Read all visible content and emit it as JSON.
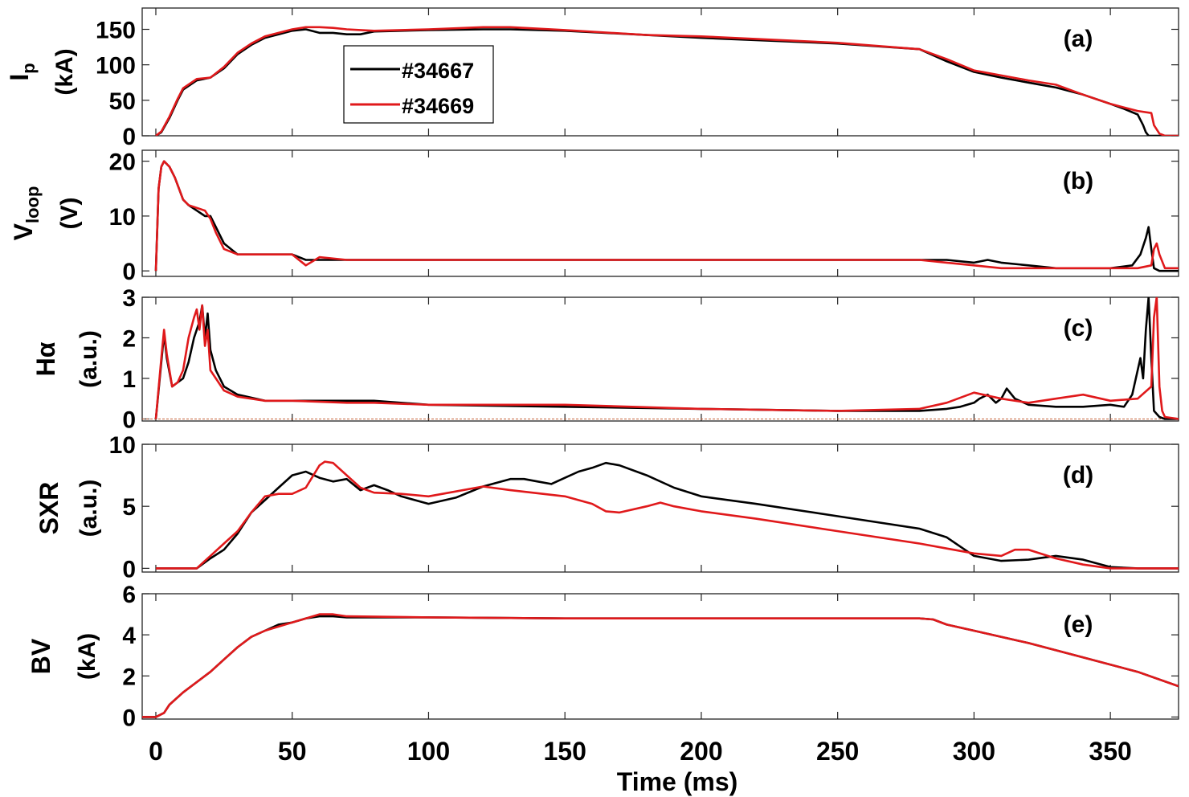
{
  "chart_data": {
    "type": "line",
    "xlabel": "Time (ms)",
    "xlim": [
      -5,
      375
    ],
    "xticks": [
      0,
      50,
      100,
      150,
      200,
      250,
      300,
      350
    ],
    "legend": {
      "placement": "top-left of panel (a)",
      "entries": [
        {
          "name": "#34667",
          "color": "#000000"
        },
        {
          "name": "#34669",
          "color": "#e0191b"
        }
      ]
    },
    "panels": [
      {
        "tag": "(a)",
        "ylabel": [
          "I",
          "p",
          "(kA)"
        ],
        "ylim": [
          0,
          180
        ],
        "yticks": [
          0,
          50,
          100,
          150
        ],
        "series": [
          {
            "name": "#34667",
            "color": "#000000",
            "x": [
              0,
              2,
              5,
              8,
              10,
              15,
              20,
              25,
              30,
              35,
              40,
              45,
              50,
              55,
              60,
              65,
              70,
              75,
              80,
              90,
              100,
              120,
              130,
              150,
              180,
              200,
              250,
              280,
              290,
              300,
              310,
              320,
              330,
              340,
              350,
              355,
              360,
              362,
              363,
              364,
              366,
              370,
              375
            ],
            "y": [
              0,
              5,
              25,
              50,
              65,
              78,
              82,
              95,
              115,
              128,
              138,
              143,
              148,
              150,
              145,
              145,
              143,
              143,
              147,
              148,
              149,
              150,
              150,
              148,
              142,
              138,
              130,
              122,
              105,
              90,
              82,
              75,
              68,
              58,
              45,
              38,
              30,
              15,
              5,
              0,
              0,
              0,
              0
            ]
          },
          {
            "name": "#34669",
            "color": "#e0191b",
            "x": [
              0,
              2,
              5,
              8,
              10,
              15,
              20,
              25,
              30,
              35,
              40,
              45,
              50,
              55,
              60,
              65,
              70,
              75,
              80,
              90,
              100,
              120,
              130,
              150,
              180,
              200,
              250,
              280,
              290,
              300,
              310,
              320,
              330,
              340,
              350,
              355,
              360,
              365,
              366,
              368,
              370,
              375
            ],
            "y": [
              0,
              6,
              27,
              52,
              67,
              80,
              82,
              97,
              117,
              130,
              140,
              145,
              150,
              153,
              153,
              152,
              150,
              149,
              148,
              149,
              150,
              153,
              153,
              149,
              142,
              140,
              131,
              122,
              108,
              92,
              85,
              78,
              72,
              58,
              45,
              40,
              35,
              32,
              15,
              3,
              0,
              0
            ]
          }
        ]
      },
      {
        "tag": "(b)",
        "ylabel": [
          "V",
          "loop",
          "(V)"
        ],
        "ylim": [
          -1,
          22
        ],
        "yticks": [
          0,
          10,
          20
        ],
        "series": [
          {
            "name": "#34667",
            "color": "#000000",
            "x": [
              0,
              1,
              2,
              3,
              5,
              7,
              10,
              12,
              15,
              18,
              20,
              22,
              25,
              30,
              40,
              50,
              55,
              60,
              70,
              80,
              100,
              150,
              200,
              250,
              280,
              290,
              300,
              305,
              310,
              320,
              330,
              340,
              350,
              358,
              361,
              363,
              364,
              365,
              366,
              368,
              370,
              375
            ],
            "y": [
              0,
              15,
              19,
              20,
              19,
              17,
              13,
              12,
              11,
              10,
              10,
              8,
              5,
              3,
              3,
              3,
              2,
              2,
              2,
              2,
              2,
              2,
              2,
              2,
              2,
              2,
              1.5,
              2,
              1.5,
              1,
              0.5,
              0.5,
              0.5,
              1,
              3,
              6,
              8,
              4,
              0.5,
              0,
              0,
              0
            ]
          },
          {
            "name": "#34669",
            "color": "#e0191b",
            "x": [
              0,
              1,
              2,
              3,
              5,
              7,
              10,
              12,
              15,
              18,
              20,
              22,
              25,
              30,
              40,
              50,
              55,
              60,
              70,
              80,
              100,
              150,
              200,
              250,
              280,
              290,
              300,
              310,
              320,
              330,
              340,
              350,
              360,
              365,
              366,
              367,
              368,
              370,
              375
            ],
            "y": [
              0,
              15,
              19,
              20,
              19,
              17,
              13,
              12,
              11.5,
              11,
              9.5,
              7,
              4,
              3,
              3,
              3,
              1,
              2.5,
              2,
              2,
              2,
              2,
              2,
              2,
              2,
              1.5,
              1,
              0.5,
              0.5,
              0.5,
              0.5,
              0.5,
              0.5,
              1,
              4,
              5,
              3,
              0.5,
              0.5
            ]
          }
        ]
      },
      {
        "tag": "(c)",
        "ylabel": [
          "Hα",
          "(a.u.)"
        ],
        "ylim": [
          -0.05,
          3
        ],
        "yticks": [
          0,
          1,
          2,
          3
        ],
        "series": [
          {
            "name": "#34667",
            "color": "#000000",
            "x": [
              0,
              2,
              3,
              4,
              6,
              8,
              10,
              12,
              14,
              16,
              17,
              18,
              19,
              20,
              22,
              25,
              30,
              40,
              50,
              70,
              80,
              100,
              150,
              200,
              250,
              280,
              290,
              295,
              300,
              302,
              305,
              308,
              310,
              312,
              315,
              320,
              330,
              340,
              350,
              355,
              358,
              360,
              361,
              362,
              363,
              364,
              365,
              366,
              368,
              370,
              375
            ],
            "y": [
              0,
              1.4,
              2.1,
              1.5,
              0.8,
              0.9,
              1,
              1.4,
              2,
              2.4,
              2.8,
              2,
              2.6,
              1.7,
              1.2,
              0.8,
              0.6,
              0.45,
              0.45,
              0.45,
              0.45,
              0.35,
              0.3,
              0.25,
              0.2,
              0.2,
              0.25,
              0.3,
              0.4,
              0.5,
              0.6,
              0.4,
              0.5,
              0.75,
              0.5,
              0.35,
              0.3,
              0.3,
              0.35,
              0.3,
              0.6,
              1.2,
              1.5,
              1,
              2.2,
              3,
              1.5,
              0.2,
              0.05,
              0,
              0
            ]
          },
          {
            "name": "#34669",
            "color": "#e0191b",
            "x": [
              0,
              2,
              3,
              4,
              6,
              8,
              10,
              12,
              14,
              15,
              16,
              17,
              18,
              19,
              20,
              22,
              25,
              30,
              40,
              50,
              70,
              80,
              100,
              150,
              200,
              250,
              280,
              290,
              300,
              310,
              320,
              330,
              340,
              350,
              360,
              365,
              366,
              367,
              368,
              369,
              370,
              375
            ],
            "y": [
              0,
              1.5,
              2.2,
              1.6,
              0.8,
              0.9,
              1.2,
              2,
              2.5,
              2.7,
              2.2,
              2.8,
              1.8,
              2.2,
              1.2,
              1,
              0.7,
              0.55,
              0.45,
              0.45,
              0.4,
              0.4,
              0.35,
              0.35,
              0.25,
              0.2,
              0.25,
              0.4,
              0.65,
              0.5,
              0.4,
              0.5,
              0.6,
              0.45,
              0.5,
              0.8,
              2.5,
              3,
              0.8,
              0.2,
              0.05,
              0
            ]
          }
        ]
      },
      {
        "tag": "(d)",
        "ylabel": [
          "SXR",
          "(a.u.)"
        ],
        "ylim": [
          -0.3,
          10
        ],
        "yticks": [
          0,
          5,
          10
        ],
        "series": [
          {
            "name": "#34667",
            "color": "#000000",
            "x": [
              0,
              10,
              15,
              20,
              25,
              30,
              35,
              40,
              45,
              50,
              55,
              60,
              65,
              70,
              75,
              80,
              85,
              90,
              100,
              110,
              120,
              130,
              135,
              140,
              145,
              150,
              155,
              160,
              165,
              170,
              180,
              190,
              200,
              220,
              250,
              280,
              290,
              300,
              310,
              320,
              330,
              340,
              350,
              360,
              375
            ],
            "y": [
              0,
              0,
              0,
              0.8,
              1.5,
              2.8,
              4.5,
              5.5,
              6.5,
              7.5,
              7.8,
              7.3,
              7,
              7.2,
              6.3,
              6.7,
              6.3,
              5.8,
              5.2,
              5.7,
              6.6,
              7.2,
              7.2,
              7,
              6.8,
              7.3,
              7.8,
              8.1,
              8.5,
              8.3,
              7.5,
              6.5,
              5.8,
              5.2,
              4.2,
              3.2,
              2.5,
              1,
              0.6,
              0.7,
              1,
              0.7,
              0.1,
              0,
              0
            ]
          },
          {
            "name": "#34669",
            "color": "#e0191b",
            "x": [
              0,
              10,
              15,
              20,
              25,
              30,
              35,
              40,
              45,
              50,
              55,
              60,
              62,
              65,
              70,
              75,
              80,
              90,
              100,
              110,
              120,
              130,
              150,
              160,
              165,
              170,
              180,
              185,
              190,
              200,
              220,
              250,
              280,
              290,
              300,
              310,
              315,
              320,
              330,
              340,
              350,
              360,
              375
            ],
            "y": [
              0,
              0,
              0,
              1,
              2,
              3,
              4.5,
              5.8,
              6,
              6,
              6.5,
              8.3,
              8.6,
              8.5,
              7.5,
              6.5,
              6.1,
              6,
              5.8,
              6.2,
              6.6,
              6.3,
              5.8,
              5.2,
              4.6,
              4.5,
              5,
              5.3,
              5,
              4.6,
              4,
              3,
              2,
              1.6,
              1.2,
              1,
              1.5,
              1.5,
              0.8,
              0.3,
              0,
              0,
              0
            ]
          }
        ]
      },
      {
        "tag": "(e)",
        "ylabel": [
          "BV",
          "(kA)"
        ],
        "ylim": [
          -0.1,
          6
        ],
        "yticks": [
          0,
          2,
          4,
          6
        ],
        "series": [
          {
            "name": "#34667",
            "color": "#000000",
            "x": [
              -5,
              0,
              3,
              5,
              10,
              15,
              20,
              25,
              30,
              35,
              40,
              45,
              50,
              55,
              60,
              65,
              70,
              100,
              150,
              200,
              250,
              280,
              285,
              290,
              300,
              320,
              340,
              360,
              375
            ],
            "y": [
              0,
              0,
              0.2,
              0.6,
              1.2,
              1.7,
              2.2,
              2.8,
              3.4,
              3.9,
              4.2,
              4.5,
              4.6,
              4.8,
              4.9,
              4.9,
              4.85,
              4.85,
              4.8,
              4.8,
              4.8,
              4.8,
              4.75,
              4.5,
              4.2,
              3.6,
              2.9,
              2.2,
              1.5
            ]
          },
          {
            "name": "#34669",
            "color": "#e0191b",
            "x": [
              -5,
              0,
              3,
              5,
              10,
              15,
              20,
              25,
              30,
              35,
              40,
              45,
              50,
              55,
              60,
              65,
              70,
              100,
              150,
              200,
              250,
              280,
              285,
              290,
              300,
              320,
              340,
              360,
              375
            ],
            "y": [
              0,
              0,
              0.2,
              0.6,
              1.2,
              1.7,
              2.2,
              2.8,
              3.4,
              3.9,
              4.2,
              4.4,
              4.6,
              4.8,
              5,
              5,
              4.9,
              4.85,
              4.8,
              4.8,
              4.8,
              4.8,
              4.75,
              4.5,
              4.2,
              3.6,
              2.9,
              2.2,
              1.5
            ]
          }
        ]
      }
    ]
  }
}
